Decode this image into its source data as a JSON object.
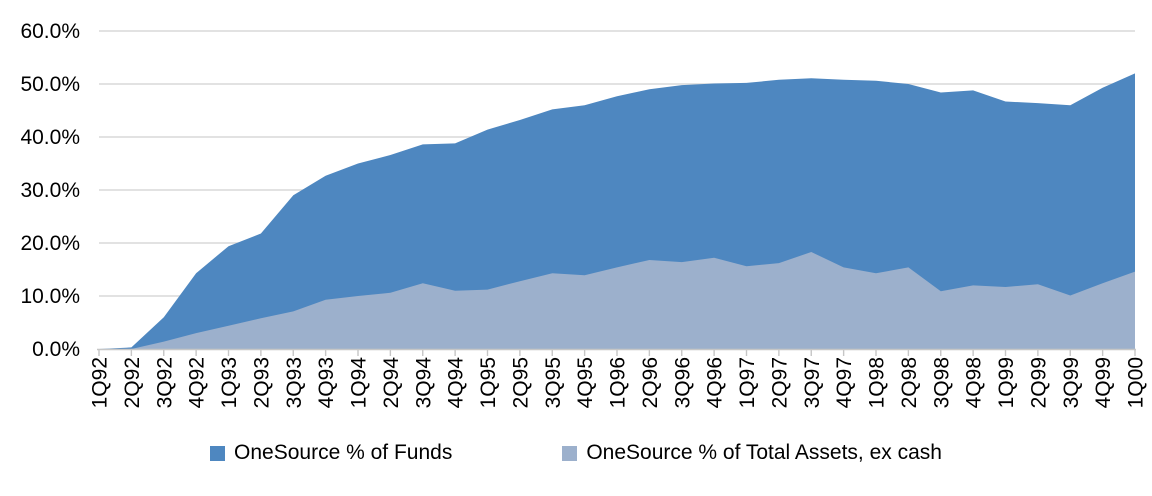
{
  "chart_data": {
    "type": "area",
    "title": "",
    "xlabel": "",
    "ylabel": "",
    "grid": true,
    "legend_position": "bottom",
    "areas_overlap": true,
    "categories": [
      "1Q92",
      "2Q92",
      "3Q92",
      "4Q92",
      "1Q93",
      "2Q93",
      "3Q93",
      "4Q93",
      "1Q94",
      "2Q94",
      "3Q94",
      "4Q94",
      "1Q95",
      "2Q95",
      "3Q95",
      "4Q95",
      "1Q96",
      "2Q96",
      "3Q96",
      "4Q96",
      "1Q97",
      "2Q97",
      "3Q97",
      "4Q97",
      "1Q98",
      "2Q98",
      "3Q98",
      "4Q98",
      "1Q99",
      "2Q99",
      "3Q99",
      "4Q99",
      "1Q00"
    ],
    "series": [
      {
        "name": "OneSource % of Funds",
        "color": "#4E87C0",
        "values": [
          0.0,
          0.3,
          6.0,
          14.3,
          19.4,
          21.8,
          29.0,
          32.7,
          35.0,
          36.6,
          38.6,
          38.8,
          41.4,
          43.2,
          45.2,
          46.0,
          47.7,
          49.0,
          49.8,
          50.1,
          50.2,
          50.8,
          51.1,
          50.8,
          50.6,
          50.0,
          48.4,
          48.8,
          46.7,
          46.4,
          46.0,
          49.3,
          52.0
        ]
      },
      {
        "name": "OneSource % of Total Assets, ex cash",
        "color": "#9CB0CC",
        "values": [
          0.0,
          0.0,
          1.4,
          3.0,
          4.4,
          5.8,
          7.1,
          9.3,
          10.0,
          10.6,
          12.4,
          11.0,
          11.2,
          12.8,
          14.3,
          13.9,
          15.4,
          16.8,
          16.4,
          17.2,
          15.6,
          16.2,
          18.3,
          15.4,
          14.3,
          15.4,
          10.9,
          12.0,
          11.7,
          12.2,
          10.1,
          12.4,
          14.6
        ]
      }
    ],
    "y_axis": {
      "min": 0,
      "max": 60,
      "step": 10,
      "tick_labels": [
        "0.0%",
        "10.0%",
        "20.0%",
        "30.0%",
        "40.0%",
        "50.0%",
        "60.0%"
      ]
    }
  },
  "style": {
    "grid_color": "#D9D9D9",
    "axis_color": "#C6C6C6",
    "text_color": "#000000",
    "background": "#FFFFFF"
  }
}
